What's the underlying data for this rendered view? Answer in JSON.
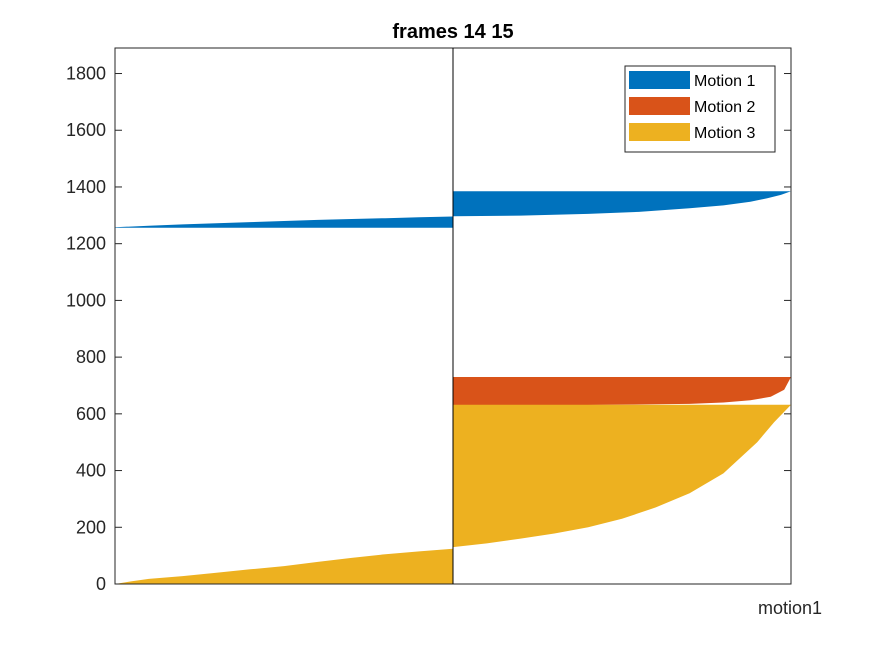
{
  "chart_data": {
    "type": "area",
    "title": "frames 14 15",
    "xlabel": "motion1",
    "ylabel": "",
    "ylim": [
      0,
      1890
    ],
    "yticks": [
      0,
      200,
      400,
      600,
      800,
      1000,
      1200,
      1400,
      1600,
      1800
    ],
    "grid": false,
    "legend_position": "top-right",
    "colors": {
      "motion1": "#0072BD",
      "motion2": "#D95319",
      "motion3": "#EDB120"
    },
    "legend": [
      {
        "key": "motion1",
        "label": "Motion 1"
      },
      {
        "key": "motion2",
        "label": "Motion 2"
      },
      {
        "key": "motion3",
        "label": "Motion 3"
      }
    ],
    "panels": [
      {
        "name": "left",
        "series": [
          {
            "key": "motion1",
            "bottom": 1256,
            "top_profile": [
              [
                0,
                1258
              ],
              [
                0.1,
                1263
              ],
              [
                0.2,
                1268
              ],
              [
                0.3,
                1272
              ],
              [
                0.4,
                1276
              ],
              [
                0.5,
                1280
              ],
              [
                0.6,
                1284
              ],
              [
                0.7,
                1287
              ],
              [
                0.8,
                1290
              ],
              [
                0.9,
                1293
              ],
              [
                1.0,
                1296
              ]
            ]
          },
          {
            "key": "motion3",
            "bottom": 0,
            "top_profile": [
              [
                0,
                0
              ],
              [
                0.05,
                10
              ],
              [
                0.1,
                18
              ],
              [
                0.2,
                28
              ],
              [
                0.3,
                40
              ],
              [
                0.4,
                52
              ],
              [
                0.5,
                63
              ],
              [
                0.6,
                78
              ],
              [
                0.7,
                92
              ],
              [
                0.8,
                105
              ],
              [
                0.9,
                115
              ],
              [
                1.0,
                124
              ]
            ]
          }
        ]
      },
      {
        "name": "right",
        "series": [
          {
            "key": "motion1",
            "bottom": 1297,
            "top": 1385,
            "bottom_profile": [
              [
                0,
                1297
              ],
              [
                0.2,
                1299
              ],
              [
                0.4,
                1305
              ],
              [
                0.55,
                1312
              ],
              [
                0.7,
                1325
              ],
              [
                0.8,
                1335
              ],
              [
                0.88,
                1348
              ],
              [
                0.93,
                1360
              ],
              [
                0.97,
                1372
              ],
              [
                1.0,
                1385
              ]
            ]
          },
          {
            "key": "motion2",
            "bottom": 628,
            "top": 730,
            "bottom_profile": [
              [
                0,
                630
              ],
              [
                0.4,
                631
              ],
              [
                0.7,
                635
              ],
              [
                0.8,
                640
              ],
              [
                0.88,
                648
              ],
              [
                0.94,
                660
              ],
              [
                0.98,
                685
              ],
              [
                1.0,
                730
              ]
            ]
          },
          {
            "key": "motion3",
            "bottom": 0,
            "top": 632,
            "bottom_profile": [
              [
                0,
                130
              ],
              [
                0.1,
                143
              ],
              [
                0.2,
                160
              ],
              [
                0.3,
                178
              ],
              [
                0.4,
                200
              ],
              [
                0.5,
                230
              ],
              [
                0.6,
                270
              ],
              [
                0.7,
                320
              ],
              [
                0.8,
                390
              ],
              [
                0.9,
                500
              ],
              [
                0.95,
                570
              ],
              [
                1.0,
                632
              ]
            ]
          }
        ]
      }
    ]
  }
}
